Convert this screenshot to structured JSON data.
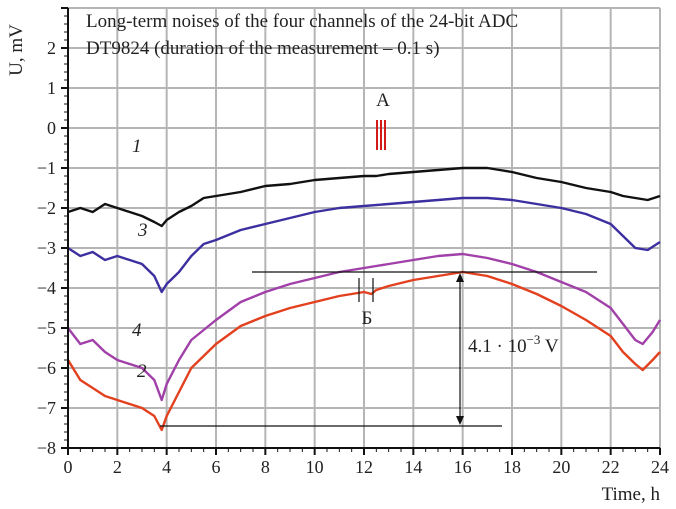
{
  "chart_data": {
    "type": "line",
    "title_lines": [
      "Long-term noises of the four channels of the 24-bit ADC",
      "DT9824 (duration of the measurement – 0.1 s)"
    ],
    "xlabel": "Time, h",
    "ylabel": "U, mV",
    "xlim": [
      0,
      24
    ],
    "ylim": [
      -8,
      3
    ],
    "xticks": [
      0,
      2,
      4,
      6,
      8,
      10,
      12,
      14,
      16,
      18,
      20,
      22,
      24
    ],
    "yticks": [
      -8,
      -7,
      -6,
      -5,
      -4,
      -3,
      -2,
      -1,
      0,
      1,
      2,
      3
    ],
    "grid": true,
    "series": [
      {
        "name": "1",
        "color": "#111111",
        "x": [
          0,
          0.5,
          1,
          1.5,
          2,
          2.5,
          3,
          3.5,
          3.8,
          4,
          4.5,
          5,
          5.5,
          6,
          7,
          8,
          9,
          10,
          11,
          12,
          12.5,
          13,
          14,
          15,
          16,
          16.5,
          17,
          17.5,
          18,
          19,
          20,
          21,
          22,
          22.5,
          23,
          23.5,
          24
        ],
        "y": [
          -2.1,
          -2.0,
          -2.1,
          -1.9,
          -2.0,
          -2.1,
          -2.2,
          -2.35,
          -2.45,
          -2.3,
          -2.1,
          -1.95,
          -1.75,
          -1.7,
          -1.6,
          -1.45,
          -1.4,
          -1.3,
          -1.25,
          -1.2,
          -1.2,
          -1.15,
          -1.1,
          -1.05,
          -1.0,
          -1.0,
          -1.0,
          -1.05,
          -1.1,
          -1.25,
          -1.35,
          -1.5,
          -1.6,
          -1.7,
          -1.75,
          -1.8,
          -1.7
        ]
      },
      {
        "name": "3",
        "color": "#3c2fa0",
        "x": [
          0,
          0.5,
          1,
          1.5,
          2,
          2.5,
          3,
          3.5,
          3.8,
          4,
          4.5,
          5,
          5.5,
          6,
          7,
          8,
          9,
          10,
          11,
          12,
          13,
          14,
          15,
          16,
          17,
          18,
          19,
          20,
          21,
          22,
          22.5,
          23,
          23.5,
          24
        ],
        "y": [
          -3.0,
          -3.2,
          -3.1,
          -3.3,
          -3.2,
          -3.3,
          -3.4,
          -3.7,
          -4.1,
          -3.9,
          -3.6,
          -3.2,
          -2.9,
          -2.8,
          -2.55,
          -2.4,
          -2.25,
          -2.1,
          -2.0,
          -1.95,
          -1.9,
          -1.85,
          -1.8,
          -1.75,
          -1.75,
          -1.8,
          -1.9,
          -2.0,
          -2.15,
          -2.4,
          -2.7,
          -3.0,
          -3.05,
          -2.85
        ]
      },
      {
        "name": "4",
        "color": "#a040a8",
        "x": [
          0,
          0.5,
          1,
          1.5,
          2,
          2.5,
          3,
          3.5,
          3.8,
          4,
          4.5,
          5,
          6,
          7,
          8,
          9,
          10,
          11,
          12,
          13,
          14,
          15,
          16,
          17,
          18,
          19,
          20,
          21,
          22,
          22.5,
          23,
          23.3,
          23.7,
          24
        ],
        "y": [
          -5.0,
          -5.4,
          -5.3,
          -5.6,
          -5.8,
          -5.9,
          -6.0,
          -6.3,
          -6.8,
          -6.4,
          -5.8,
          -5.3,
          -4.8,
          -4.35,
          -4.1,
          -3.9,
          -3.75,
          -3.6,
          -3.5,
          -3.4,
          -3.3,
          -3.2,
          -3.15,
          -3.25,
          -3.4,
          -3.6,
          -3.85,
          -4.1,
          -4.5,
          -4.9,
          -5.3,
          -5.4,
          -5.1,
          -4.8
        ]
      },
      {
        "name": "2",
        "color": "#e2401e",
        "x": [
          0,
          0.5,
          1,
          1.5,
          2,
          2.5,
          3,
          3.5,
          3.8,
          4,
          4.5,
          5,
          6,
          7,
          8,
          9,
          10,
          11,
          11.5,
          12,
          12.3,
          12.5,
          13,
          14,
          15,
          16,
          17,
          18,
          19,
          20,
          21,
          22,
          22.5,
          23,
          23.3,
          23.7,
          24
        ],
        "y": [
          -5.8,
          -6.3,
          -6.5,
          -6.7,
          -6.8,
          -6.9,
          -7.0,
          -7.2,
          -7.55,
          -7.2,
          -6.6,
          -6.0,
          -5.4,
          -4.95,
          -4.7,
          -4.5,
          -4.35,
          -4.2,
          -4.15,
          -4.1,
          -4.15,
          -4.05,
          -3.95,
          -3.8,
          -3.7,
          -3.6,
          -3.7,
          -3.9,
          -4.15,
          -4.45,
          -4.8,
          -5.2,
          -5.6,
          -5.9,
          -6.05,
          -5.8,
          -5.6
        ]
      }
    ],
    "annotations": {
      "point_a": "A",
      "point_b": "Б",
      "span_label": "4.1 · 10",
      "span_exp": "−3",
      "span_unit": " V"
    }
  }
}
